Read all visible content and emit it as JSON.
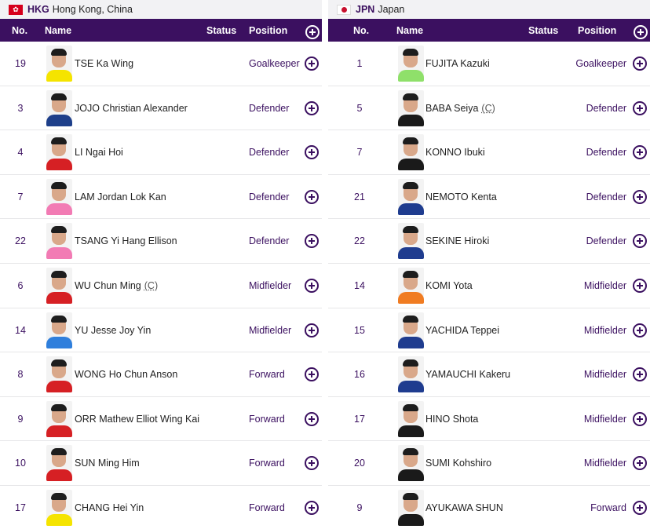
{
  "columns": {
    "no": "No.",
    "name": "Name",
    "status": "Status",
    "position": "Position"
  },
  "teams": [
    {
      "code": "HKG",
      "country": "Hong Kong, China",
      "flag_icon": "flag-hong-kong-icon",
      "players": [
        {
          "no": "19",
          "name": "TSE Ka Wing",
          "captain": "",
          "position": "Goalkeeper",
          "shirt": "#f5e400"
        },
        {
          "no": "3",
          "name": "JOJO Christian Alexander",
          "captain": "",
          "position": "Defender",
          "shirt": "#1e3f8a"
        },
        {
          "no": "4",
          "name": "LI Ngai Hoi",
          "captain": "",
          "position": "Defender",
          "shirt": "#d62024"
        },
        {
          "no": "7",
          "name": "LAM Jordan Lok Kan",
          "captain": "",
          "position": "Defender",
          "shirt": "#f27bb4"
        },
        {
          "no": "22",
          "name": "TSANG Yi Hang Ellison",
          "captain": "",
          "position": "Defender",
          "shirt": "#f27bb4"
        },
        {
          "no": "6",
          "name": "WU Chun Ming",
          "captain": "(C)",
          "position": "Midfielder",
          "shirt": "#d62024"
        },
        {
          "no": "14",
          "name": "YU Jesse Joy Yin",
          "captain": "",
          "position": "Midfielder",
          "shirt": "#2f7fdc"
        },
        {
          "no": "8",
          "name": "WONG Ho Chun Anson",
          "captain": "",
          "position": "Forward",
          "shirt": "#d62024"
        },
        {
          "no": "9",
          "name": "ORR Mathew Elliot Wing Kai",
          "captain": "",
          "position": "Forward",
          "shirt": "#d62024"
        },
        {
          "no": "10",
          "name": "SUN Ming Him",
          "captain": "",
          "position": "Forward",
          "shirt": "#d62024"
        },
        {
          "no": "17",
          "name": "CHANG Hei Yin",
          "captain": "",
          "position": "Forward",
          "shirt": "#f5e400"
        }
      ]
    },
    {
      "code": "JPN",
      "country": "Japan",
      "flag_icon": "flag-japan-icon",
      "players": [
        {
          "no": "1",
          "name": "FUJITA Kazuki",
          "captain": "",
          "position": "Goalkeeper",
          "shirt": "#8fe06a"
        },
        {
          "no": "5",
          "name": "BABA Seiya",
          "captain": "(C)",
          "position": "Defender",
          "shirt": "#1a1a1a"
        },
        {
          "no": "7",
          "name": "KONNO Ibuki",
          "captain": "",
          "position": "Defender",
          "shirt": "#1a1a1a"
        },
        {
          "no": "21",
          "name": "NEMOTO Kenta",
          "captain": "",
          "position": "Defender",
          "shirt": "#1f3c8f"
        },
        {
          "no": "22",
          "name": "SEKINE Hiroki",
          "captain": "",
          "position": "Defender",
          "shirt": "#1f3c8f"
        },
        {
          "no": "14",
          "name": "KOMI Yota",
          "captain": "",
          "position": "Midfielder",
          "shirt": "#f07c22"
        },
        {
          "no": "15",
          "name": "YACHIDA Teppei",
          "captain": "",
          "position": "Midfielder",
          "shirt": "#1f3c8f"
        },
        {
          "no": "16",
          "name": "YAMAUCHI Kakeru",
          "captain": "",
          "position": "Midfielder",
          "shirt": "#1f3c8f"
        },
        {
          "no": "17",
          "name": "HINO Shota",
          "captain": "",
          "position": "Midfielder",
          "shirt": "#1a1a1a"
        },
        {
          "no": "20",
          "name": "SUMI Kohshiro",
          "captain": "",
          "position": "Midfielder",
          "shirt": "#1a1a1a"
        },
        {
          "no": "9",
          "name": "AYUKAWA SHUN",
          "captain": "",
          "position": "Forward",
          "shirt": "#1a1a1a"
        }
      ]
    }
  ],
  "colors": {
    "accent": "#3b1060",
    "header_bg": "#f2f2f4"
  }
}
